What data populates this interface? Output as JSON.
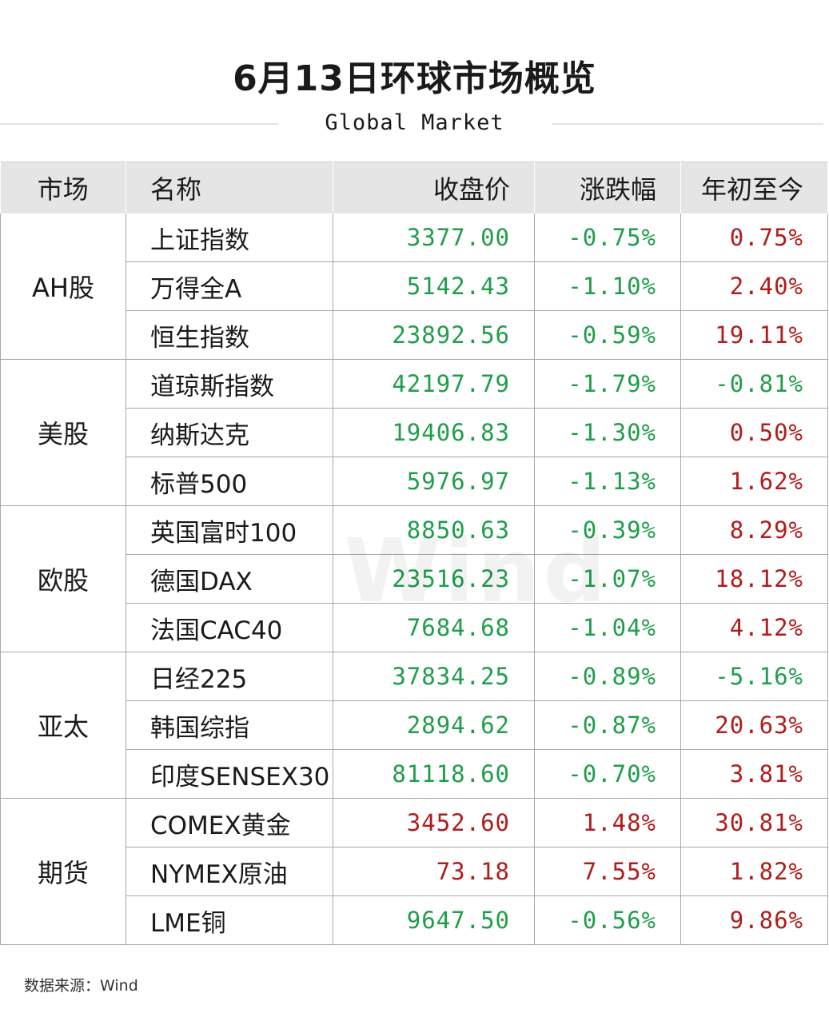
{
  "title": "6月13日环球市场概览",
  "subtitle": "Global Market",
  "headers": {
    "market": "市场",
    "name": "名称",
    "close": "收盘价",
    "change": "涨跌幅",
    "ytd": "年初至今"
  },
  "colors": {
    "up": "#b31b1b",
    "down": "#1f9e4a"
  },
  "groups": [
    {
      "label": "AH股",
      "rows": [
        {
          "name": "上证指数",
          "close": "3377.00",
          "change": "-0.75%",
          "ytd": "0.75%"
        },
        {
          "name": "万得全A",
          "close": "5142.43",
          "change": "-1.10%",
          "ytd": "2.40%"
        },
        {
          "name": "恒生指数",
          "close": "23892.56",
          "change": "-0.59%",
          "ytd": "19.11%"
        }
      ]
    },
    {
      "label": "美股",
      "rows": [
        {
          "name": "道琼斯指数",
          "close": "42197.79",
          "change": "-1.79%",
          "ytd": "-0.81%"
        },
        {
          "name": "纳斯达克",
          "close": "19406.83",
          "change": "-1.30%",
          "ytd": "0.50%"
        },
        {
          "name": "标普500",
          "close": "5976.97",
          "change": "-1.13%",
          "ytd": "1.62%"
        }
      ]
    },
    {
      "label": "欧股",
      "rows": [
        {
          "name": "英国富时100",
          "close": "8850.63",
          "change": "-0.39%",
          "ytd": "8.29%"
        },
        {
          "name": "德国DAX",
          "close": "23516.23",
          "change": "-1.07%",
          "ytd": "18.12%"
        },
        {
          "name": "法国CAC40",
          "close": "7684.68",
          "change": "-1.04%",
          "ytd": "4.12%"
        }
      ]
    },
    {
      "label": "亚太",
      "rows": [
        {
          "name": "日经225",
          "close": "37834.25",
          "change": "-0.89%",
          "ytd": "-5.16%"
        },
        {
          "name": "韩国综指",
          "close": "2894.62",
          "change": "-0.87%",
          "ytd": "20.63%"
        },
        {
          "name": "印度SENSEX30",
          "close": "81118.60",
          "change": "-0.70%",
          "ytd": "3.81%"
        }
      ]
    },
    {
      "label": "期货",
      "rows": [
        {
          "name": "COMEX黄金",
          "close": "3452.60",
          "change": "1.48%",
          "ytd": "30.81%"
        },
        {
          "name": "NYMEX原油",
          "close": "73.18",
          "change": "7.55%",
          "ytd": "1.82%"
        },
        {
          "name": "LME铜",
          "close": "9647.50",
          "change": "-0.56%",
          "ytd": "9.86%"
        }
      ]
    }
  ],
  "watermark": "Wind",
  "source": "数据来源：Wind"
}
